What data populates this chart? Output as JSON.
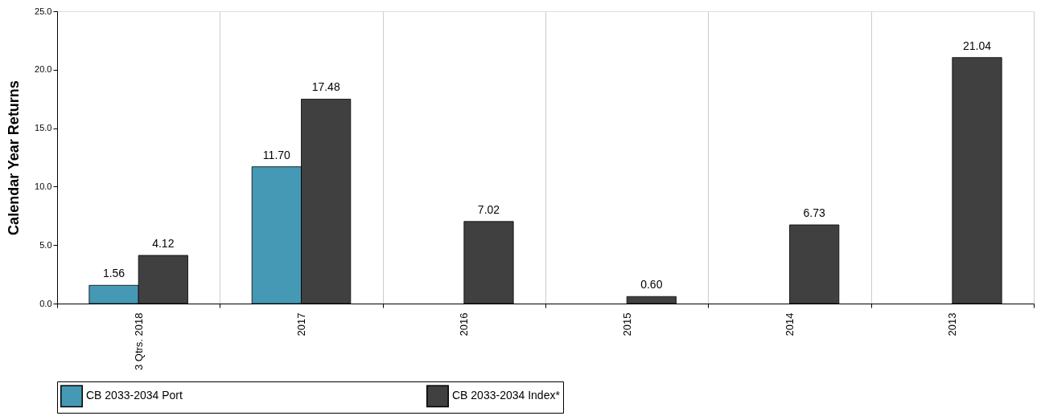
{
  "chart_data": {
    "type": "bar",
    "ylabel": "Calendar Year Returns",
    "categories": [
      "3 Qtrs. 2018",
      "2017",
      "2016",
      "2015",
      "2014",
      "2013"
    ],
    "series": [
      {
        "name": "CB 2033-2034 Port",
        "color": "#4599b4",
        "values": [
          1.56,
          11.7,
          null,
          null,
          null,
          null
        ],
        "value_labels": [
          "1.56",
          "11.70",
          null,
          null,
          null,
          null
        ]
      },
      {
        "name": "CB 2033-2034 Index*",
        "color": "#404041",
        "values": [
          4.12,
          17.48,
          7.02,
          0.6,
          6.73,
          21.04
        ],
        "value_labels": [
          "4.12",
          "17.48",
          "7.02",
          "0.60",
          "6.73",
          "21.04"
        ]
      }
    ],
    "ylim": [
      0,
      25
    ],
    "yticks": [
      {
        "value": 0,
        "label": "0.0"
      },
      {
        "value": 5,
        "label": "5.0"
      },
      {
        "value": 10,
        "label": "10.0"
      },
      {
        "value": 15,
        "label": "15.0"
      },
      {
        "value": 20,
        "label": "20.0"
      },
      {
        "value": 25,
        "label": "25.0"
      }
    ],
    "grid": "x",
    "legend": "bottom"
  }
}
